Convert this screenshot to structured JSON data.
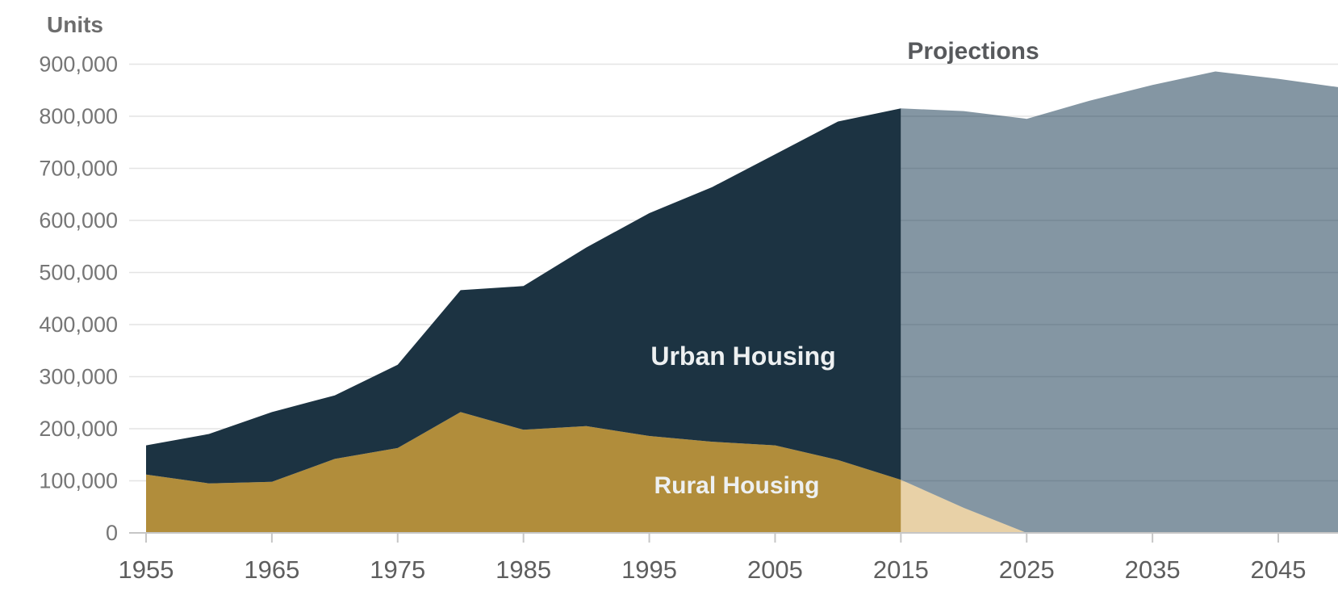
{
  "chart_data": {
    "type": "area",
    "stacked": true,
    "title": "",
    "ylabel": "Units",
    "xlabel": "",
    "grid": true,
    "legend_position": "inline-labels",
    "ylim": [
      0,
      900000
    ],
    "xlim": [
      1955,
      2050
    ],
    "y_ticks": [
      {
        "value": 0,
        "label": "0"
      },
      {
        "value": 100000,
        "label": "100,000"
      },
      {
        "value": 200000,
        "label": "200,000"
      },
      {
        "value": 300000,
        "label": "300,000"
      },
      {
        "value": 400000,
        "label": "400,000"
      },
      {
        "value": 500000,
        "label": "500,000"
      },
      {
        "value": 600000,
        "label": "600,000"
      },
      {
        "value": 700000,
        "label": "700,000"
      },
      {
        "value": 800000,
        "label": "800,000"
      },
      {
        "value": 900000,
        "label": "900,000"
      }
    ],
    "x_ticks": [
      {
        "value": 1955,
        "label": "1955"
      },
      {
        "value": 1965,
        "label": "1965"
      },
      {
        "value": 1975,
        "label": "1975"
      },
      {
        "value": 1985,
        "label": "1985"
      },
      {
        "value": 1995,
        "label": "1995"
      },
      {
        "value": 2005,
        "label": "2005"
      },
      {
        "value": 2015,
        "label": "2015"
      },
      {
        "value": 2025,
        "label": "2025"
      },
      {
        "value": 2035,
        "label": "2035"
      },
      {
        "value": 2045,
        "label": "2045"
      }
    ],
    "historical": {
      "years": [
        1955,
        1960,
        1965,
        1970,
        1975,
        1980,
        1985,
        1990,
        1995,
        2000,
        2005,
        2010,
        2015
      ],
      "series": [
        {
          "name": "Rural Housing",
          "values": [
            112000,
            95000,
            98000,
            142000,
            163000,
            232000,
            198000,
            205000,
            186000,
            175000,
            168000,
            140000,
            102000
          ]
        },
        {
          "name": "Urban Housing",
          "values": [
            56000,
            95000,
            134000,
            122000,
            160000,
            234000,
            276000,
            343000,
            428000,
            489000,
            559000,
            650000,
            713000
          ]
        }
      ],
      "totals": [
        168000,
        190000,
        232000,
        264000,
        323000,
        466000,
        474000,
        548000,
        614000,
        664000,
        727000,
        790000,
        815000
      ]
    },
    "projection": {
      "start_year": 2015,
      "years": [
        2015,
        2020,
        2025,
        2030,
        2035,
        2040,
        2045,
        2050
      ],
      "series": [
        {
          "name": "Rural Housing",
          "values": [
            102000,
            48000,
            0,
            0,
            0,
            0,
            0,
            0
          ]
        },
        {
          "name": "Urban Housing",
          "values": [
            713000,
            762000,
            795000,
            830000,
            860000,
            886000,
            872000,
            856000
          ]
        }
      ],
      "totals": [
        815000,
        810000,
        795000,
        830000,
        860000,
        886000,
        872000,
        856000
      ]
    },
    "labels": {
      "units": "Units",
      "projections": "Projections",
      "urban": "Urban Housing",
      "rural": "Rural Housing"
    },
    "colors": {
      "urban_fill": "#1c3342",
      "rural_fill": "#b18d3b",
      "urban_projection_fill": "rgba(20,53,78,0.52)",
      "rural_projection_fill": "rgba(198,140,35,0.40)",
      "gridline": "#e4e4e4",
      "axis_line": "#c6c6c6",
      "x_tick_text": "#5e5e5e",
      "y_tick_text": "#767676",
      "units_text": "#6d6d6d",
      "projections_text": "#57595c",
      "inline_label_text": "#edf0f1"
    }
  }
}
